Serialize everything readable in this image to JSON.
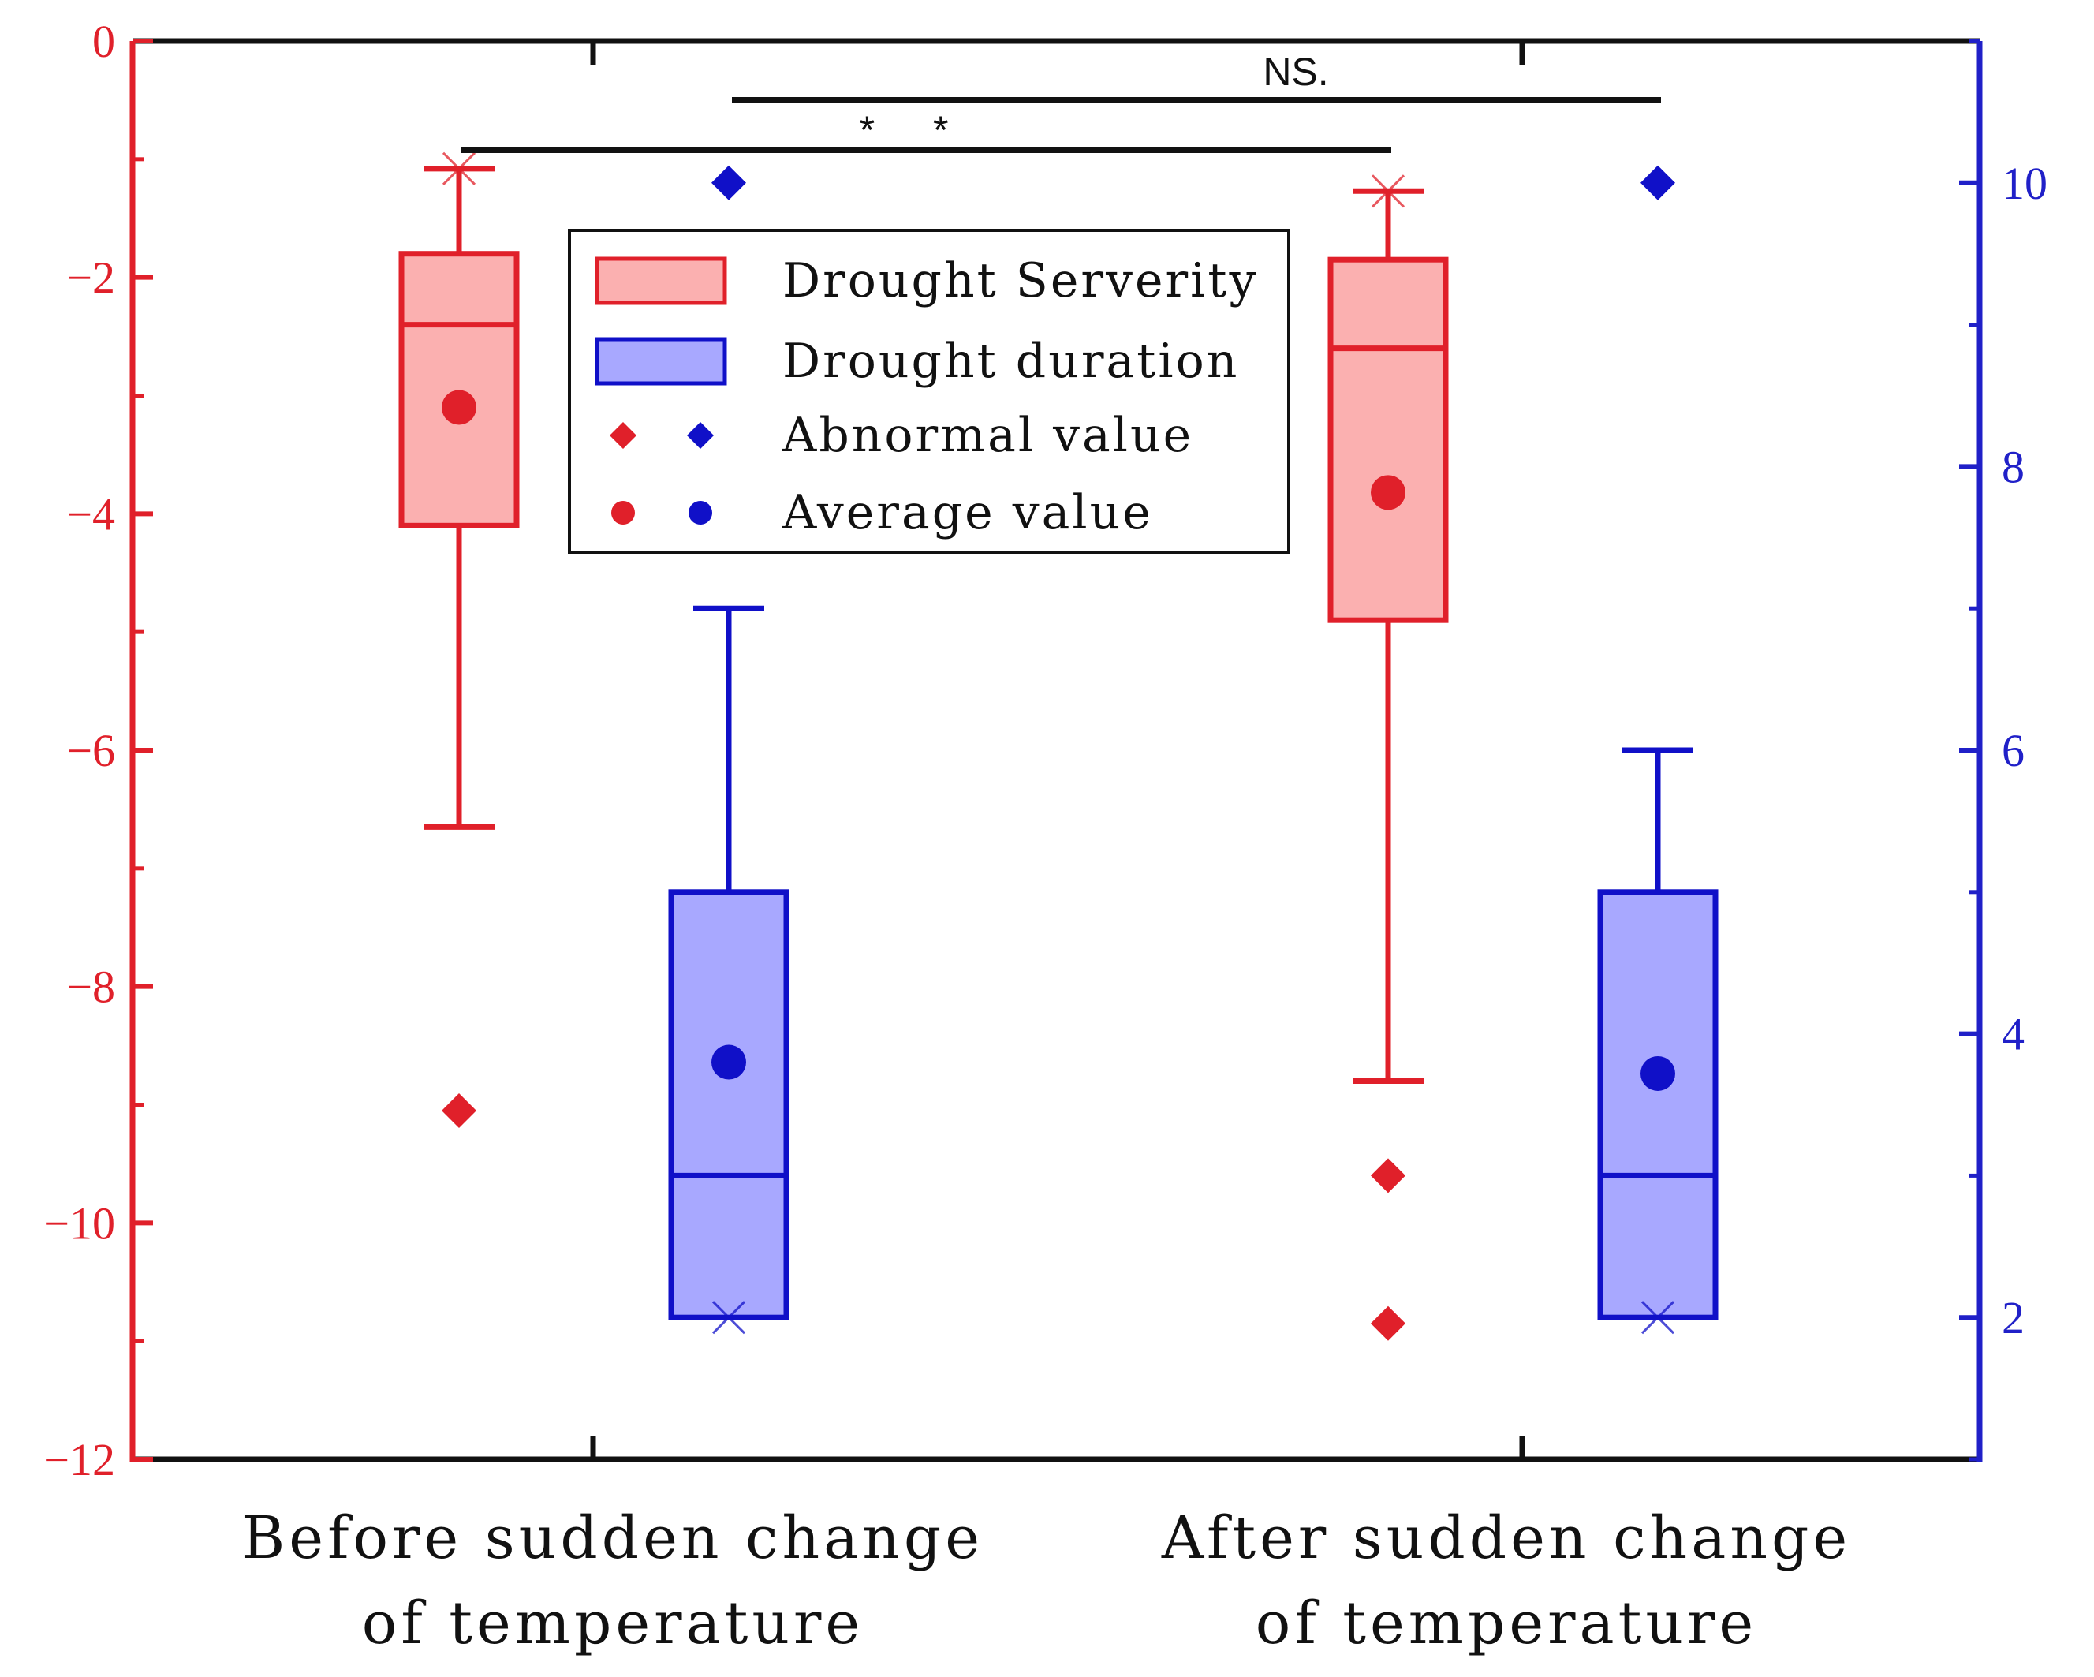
{
  "chart_data": {
    "type": "box",
    "categories": [
      [
        "Before sudden change",
        "of temperature"
      ],
      [
        "After sudden change",
        "of temperature"
      ]
    ],
    "left_axis": {
      "ylim": [
        -12,
        0
      ],
      "ticks": [
        0,
        -2,
        -4,
        -6,
        -8,
        -10,
        -12
      ],
      "color": "#e0202a"
    },
    "right_axis": {
      "ylim": [
        1,
        11
      ],
      "ticks": [
        10,
        8,
        6,
        4,
        2
      ],
      "color": "#2020c8"
    },
    "series": [
      {
        "name": "Drought Serverity",
        "axis": "left",
        "color": "#e0202a",
        "fill": "#fbb0b0",
        "boxes": [
          {
            "category": 0,
            "whisker_low": -6.65,
            "q1": -4.1,
            "median": -2.4,
            "q3": -1.8,
            "whisker_high": -1.08,
            "mean": -3.1,
            "outliers": [
              -9.05
            ],
            "extremes": [
              -1.08
            ]
          },
          {
            "category": 1,
            "whisker_low": -8.8,
            "q1": -4.9,
            "median": -2.6,
            "q3": -1.85,
            "whisker_high": -1.27,
            "mean": -3.82,
            "outliers": [
              -9.6,
              -10.85
            ],
            "extremes": [
              -1.27
            ]
          }
        ]
      },
      {
        "name": "Drought duration",
        "axis": "right",
        "color": "#1010c8",
        "fill": "#a8a8ff",
        "boxes": [
          {
            "category": 0,
            "whisker_low": 2,
            "q1": 2,
            "median": 3,
            "q3": 5,
            "whisker_high": 7,
            "mean": 3.8,
            "outliers": [
              10
            ],
            "extremes": [
              2
            ]
          },
          {
            "category": 1,
            "whisker_low": 2,
            "q1": 2,
            "median": 3,
            "q3": 5,
            "whisker_high": 6,
            "mean": 3.72,
            "outliers": [
              10
            ],
            "extremes": [
              2
            ]
          }
        ]
      }
    ],
    "legend": [
      {
        "label": "Drought Serverity",
        "kind": "box",
        "colors": [
          "#e0202a"
        ]
      },
      {
        "label": "Drought duration",
        "kind": "box",
        "colors": [
          "#1010c8"
        ]
      },
      {
        "label": "Abnormal value",
        "kind": "diamond",
        "colors": [
          "#e0202a",
          "#1010c8"
        ]
      },
      {
        "label": "Average value",
        "kind": "circle",
        "colors": [
          "#e0202a",
          "#1010c8"
        ]
      }
    ],
    "legend_position": "top-center",
    "significance": [
      {
        "label": "* *",
        "between": [
          "Drought Serverity before",
          "Drought Serverity after"
        ]
      },
      {
        "label": "NS.",
        "between": [
          "Drought duration before",
          "Drought duration after"
        ]
      }
    ]
  }
}
